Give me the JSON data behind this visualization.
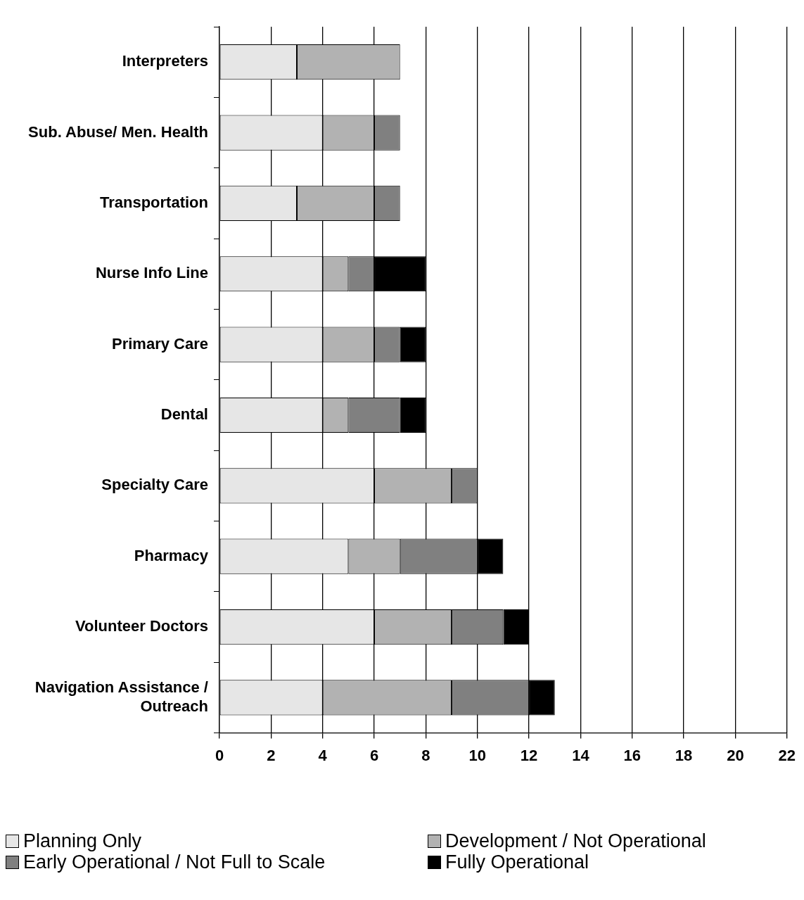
{
  "chart_data": {
    "type": "bar",
    "orientation": "horizontal",
    "stacked": true,
    "categories": [
      "Interpreters",
      "Sub. Abuse/ Men. Health",
      "Transportation",
      "Nurse Info Line",
      "Primary Care",
      "Dental",
      "Specialty Care",
      "Pharmacy",
      "Volunteer Doctors",
      "Navigation Assistance / Outreach"
    ],
    "series": [
      {
        "name": "Planning Only",
        "color": "#e6e6e6",
        "values": [
          3,
          4,
          3,
          4,
          4,
          4,
          6,
          5,
          6,
          4
        ]
      },
      {
        "name": "Development /  Not Operational",
        "color": "#b2b2b2",
        "values": [
          4,
          2,
          3,
          1,
          2,
          1,
          3,
          2,
          3,
          5
        ]
      },
      {
        "name": "Early Operational / Not Full to Scale",
        "color": "#808080",
        "values": [
          null,
          1,
          1,
          1,
          1,
          2,
          1,
          3,
          2,
          3
        ]
      },
      {
        "name": "Fully Operational",
        "color": "#000000",
        "values": [
          null,
          null,
          null,
          2,
          1,
          1,
          null,
          1,
          1,
          1
        ]
      }
    ],
    "xlim": [
      0,
      22
    ],
    "xticks": [
      0,
      2,
      4,
      6,
      8,
      10,
      12,
      14,
      16,
      18,
      20,
      22
    ],
    "grid": "x",
    "legend": "bottom"
  }
}
